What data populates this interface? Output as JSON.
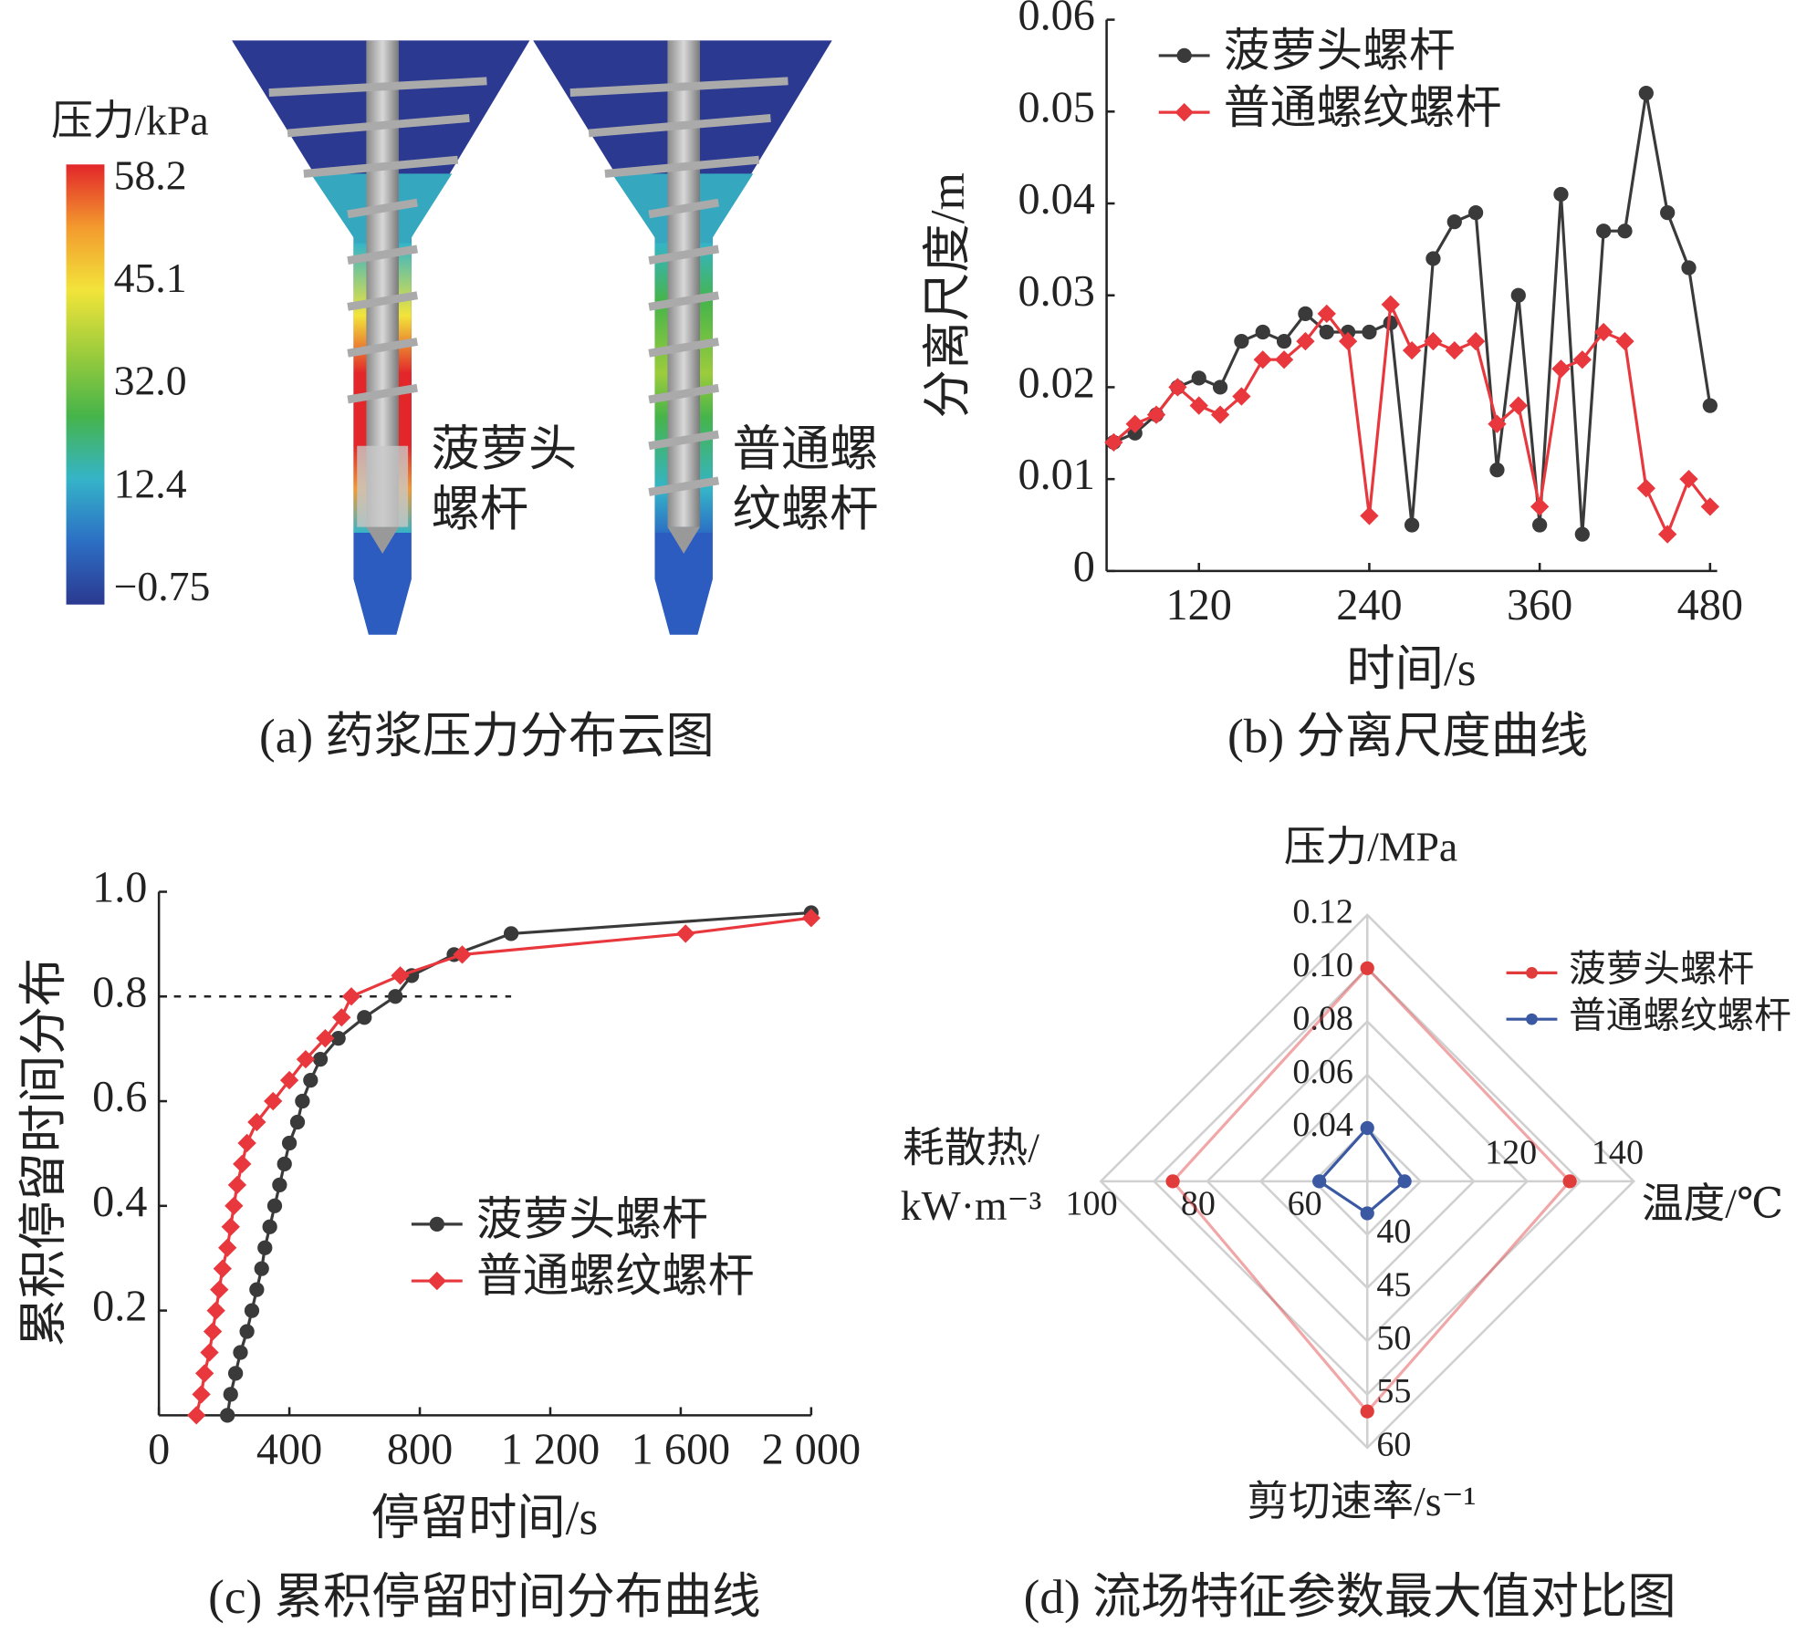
{
  "chart_data": [
    {
      "type": "image",
      "title": "(a) 药浆压力分布云图",
      "colorbar_label": "压力/kPa",
      "clim": [
        -0.75,
        58.2
      ],
      "cticks": [
        58.2,
        45.1,
        {
          "value": 32,
          "label": "32.0"
        },
        12.4,
        {
          "value": -0.75,
          "label": "−0.75"
        }
      ],
      "colormap": [
        "#2b3990",
        "#2c6fc4",
        "#35b4c8",
        "#46b44a",
        "#9ccc3c",
        "#f2e43a",
        "#f39a2e",
        "#e2262a"
      ],
      "annotations": [
        [
          "菠萝头",
          "螺杆"
        ],
        [
          "普通螺",
          "纹螺杆"
        ]
      ]
    },
    {
      "type": "line",
      "title": "(b) 分离尺度曲线",
      "xlabel": "时间/s",
      "ylabel": "分离尺度/m",
      "x": [
        60,
        75,
        90,
        105,
        120,
        135,
        150,
        165,
        180,
        195,
        210,
        225,
        240,
        255,
        270,
        285,
        300,
        315,
        330,
        345,
        360,
        375,
        390,
        405,
        420,
        435,
        450,
        465,
        480
      ],
      "series": [
        {
          "name": "菠萝头螺杆",
          "color": "#3a3a3a",
          "marker": "o",
          "values": [
            0.014,
            0.015,
            0.017,
            0.02,
            0.021,
            0.02,
            0.025,
            0.026,
            0.025,
            0.028,
            0.026,
            0.026,
            0.026,
            0.027,
            0.005,
            0.034,
            0.038,
            0.039,
            0.011,
            0.03,
            0.005,
            0.041,
            0.004,
            0.037,
            0.037,
            0.052,
            0.039,
            0.033,
            0.018
          ]
        },
        {
          "name": "普通螺纹螺杆",
          "color": "#e8383d",
          "marker": "D",
          "values": [
            0.014,
            0.016,
            0.017,
            0.02,
            0.018,
            0.017,
            0.019,
            0.023,
            0.023,
            0.025,
            0.028,
            0.025,
            0.006,
            0.029,
            0.024,
            0.025,
            0.024,
            0.025,
            0.016,
            0.018,
            0.007,
            0.022,
            0.023,
            0.026,
            0.025,
            0.009,
            0.004,
            0.01,
            0.007
          ]
        }
      ],
      "xlim": [
        55,
        485
      ],
      "xticks": [
        120,
        240,
        360,
        480
      ],
      "ylim": [
        0,
        0.06
      ],
      "yticks": [
        0,
        0.01,
        0.02,
        0.03,
        0.04,
        0.05,
        0.06
      ],
      "legend": "upper left"
    },
    {
      "type": "line",
      "title": "(c) 累积停留时间分布曲线",
      "xlabel": "停留时间/s",
      "ylabel": "累积停留时间分布",
      "series": [
        {
          "name": "菠萝头螺杆",
          "color": "#3a3a3a",
          "marker": "o",
          "x": [
            210,
            220,
            235,
            250,
            270,
            285,
            300,
            315,
            325,
            340,
            355,
            370,
            385,
            400,
            425,
            440,
            465,
            495,
            550,
            630,
            725,
            775,
            905,
            1080,
            2000
          ],
          "values": [
            0,
            0.04,
            0.08,
            0.12,
            0.16,
            0.2,
            0.24,
            0.28,
            0.32,
            0.36,
            0.4,
            0.44,
            0.48,
            0.52,
            0.56,
            0.6,
            0.64,
            0.68,
            0.72,
            0.76,
            0.8,
            0.84,
            0.88,
            0.92,
            0.96
          ]
        },
        {
          "name": "普通螺纹螺杆",
          "color": "#e8383d",
          "marker": "D",
          "x": [
            115,
            130,
            140,
            155,
            165,
            175,
            185,
            195,
            210,
            220,
            230,
            240,
            255,
            270,
            300,
            350,
            400,
            450,
            510,
            560,
            590,
            740,
            930,
            1615,
            2000
          ],
          "values": [
            0,
            0.04,
            0.08,
            0.12,
            0.16,
            0.2,
            0.24,
            0.28,
            0.32,
            0.36,
            0.4,
            0.44,
            0.48,
            0.52,
            0.56,
            0.6,
            0.64,
            0.68,
            0.72,
            0.76,
            0.8,
            0.84,
            0.88,
            0.92,
            0.95
          ]
        }
      ],
      "xlim": [
        0,
        2000
      ],
      "xticks": [
        0,
        400,
        800,
        {
          "value": 1200,
          "label": "1 200"
        },
        {
          "value": 1600,
          "label": "1 600"
        },
        {
          "value": 2000,
          "label": "2 000"
        }
      ],
      "ylim": [
        0,
        1
      ],
      "yticks": [
        {
          "value": 0.2,
          "label": "0.2"
        },
        {
          "value": 0.4,
          "label": "0.4"
        },
        {
          "value": 0.6,
          "label": "0.6"
        },
        {
          "value": 0.8,
          "label": "0.8"
        },
        {
          "value": 1,
          "label": "1.0"
        }
      ],
      "reference_line": {
        "y": 0.8,
        "x": [
          0,
          1080
        ]
      },
      "legend": "center right"
    },
    {
      "type": "radar",
      "title": "(d) 流场特征参数最大值对比图",
      "axes": [
        {
          "label": [
            "压力/MPa"
          ],
          "lim": [
            0.02,
            0.12
          ],
          "ticks": [
            0.04,
            0.06,
            0.08,
            {
              "value": 0.1,
              "label": "0.10"
            },
            0.12
          ]
        },
        {
          "label": [
            "温度/℃"
          ],
          "lim": [
            90,
            140
          ],
          "ticks": [
            120,
            140
          ]
        },
        {
          "label": [
            "剪切速率/s⁻¹"
          ],
          "lim": [
            35,
            60
          ],
          "ticks": [
            40,
            45,
            50,
            55,
            60
          ]
        },
        {
          "label": [
            "耗散热/",
            "kW·m⁻³"
          ],
          "lim": [
            50,
            100
          ],
          "ticks": [
            60,
            80,
            100
          ]
        }
      ],
      "series": [
        {
          "name": "菠萝头螺杆",
          "color": "#e03c3c",
          "values": [
            0.1,
            128,
            56.6,
            86.5
          ]
        },
        {
          "name": "普通螺纹螺杆",
          "color": "#3b59a3",
          "values": [
            0.04,
            97,
            38,
            59
          ]
        }
      ],
      "legend": "upper right"
    }
  ]
}
